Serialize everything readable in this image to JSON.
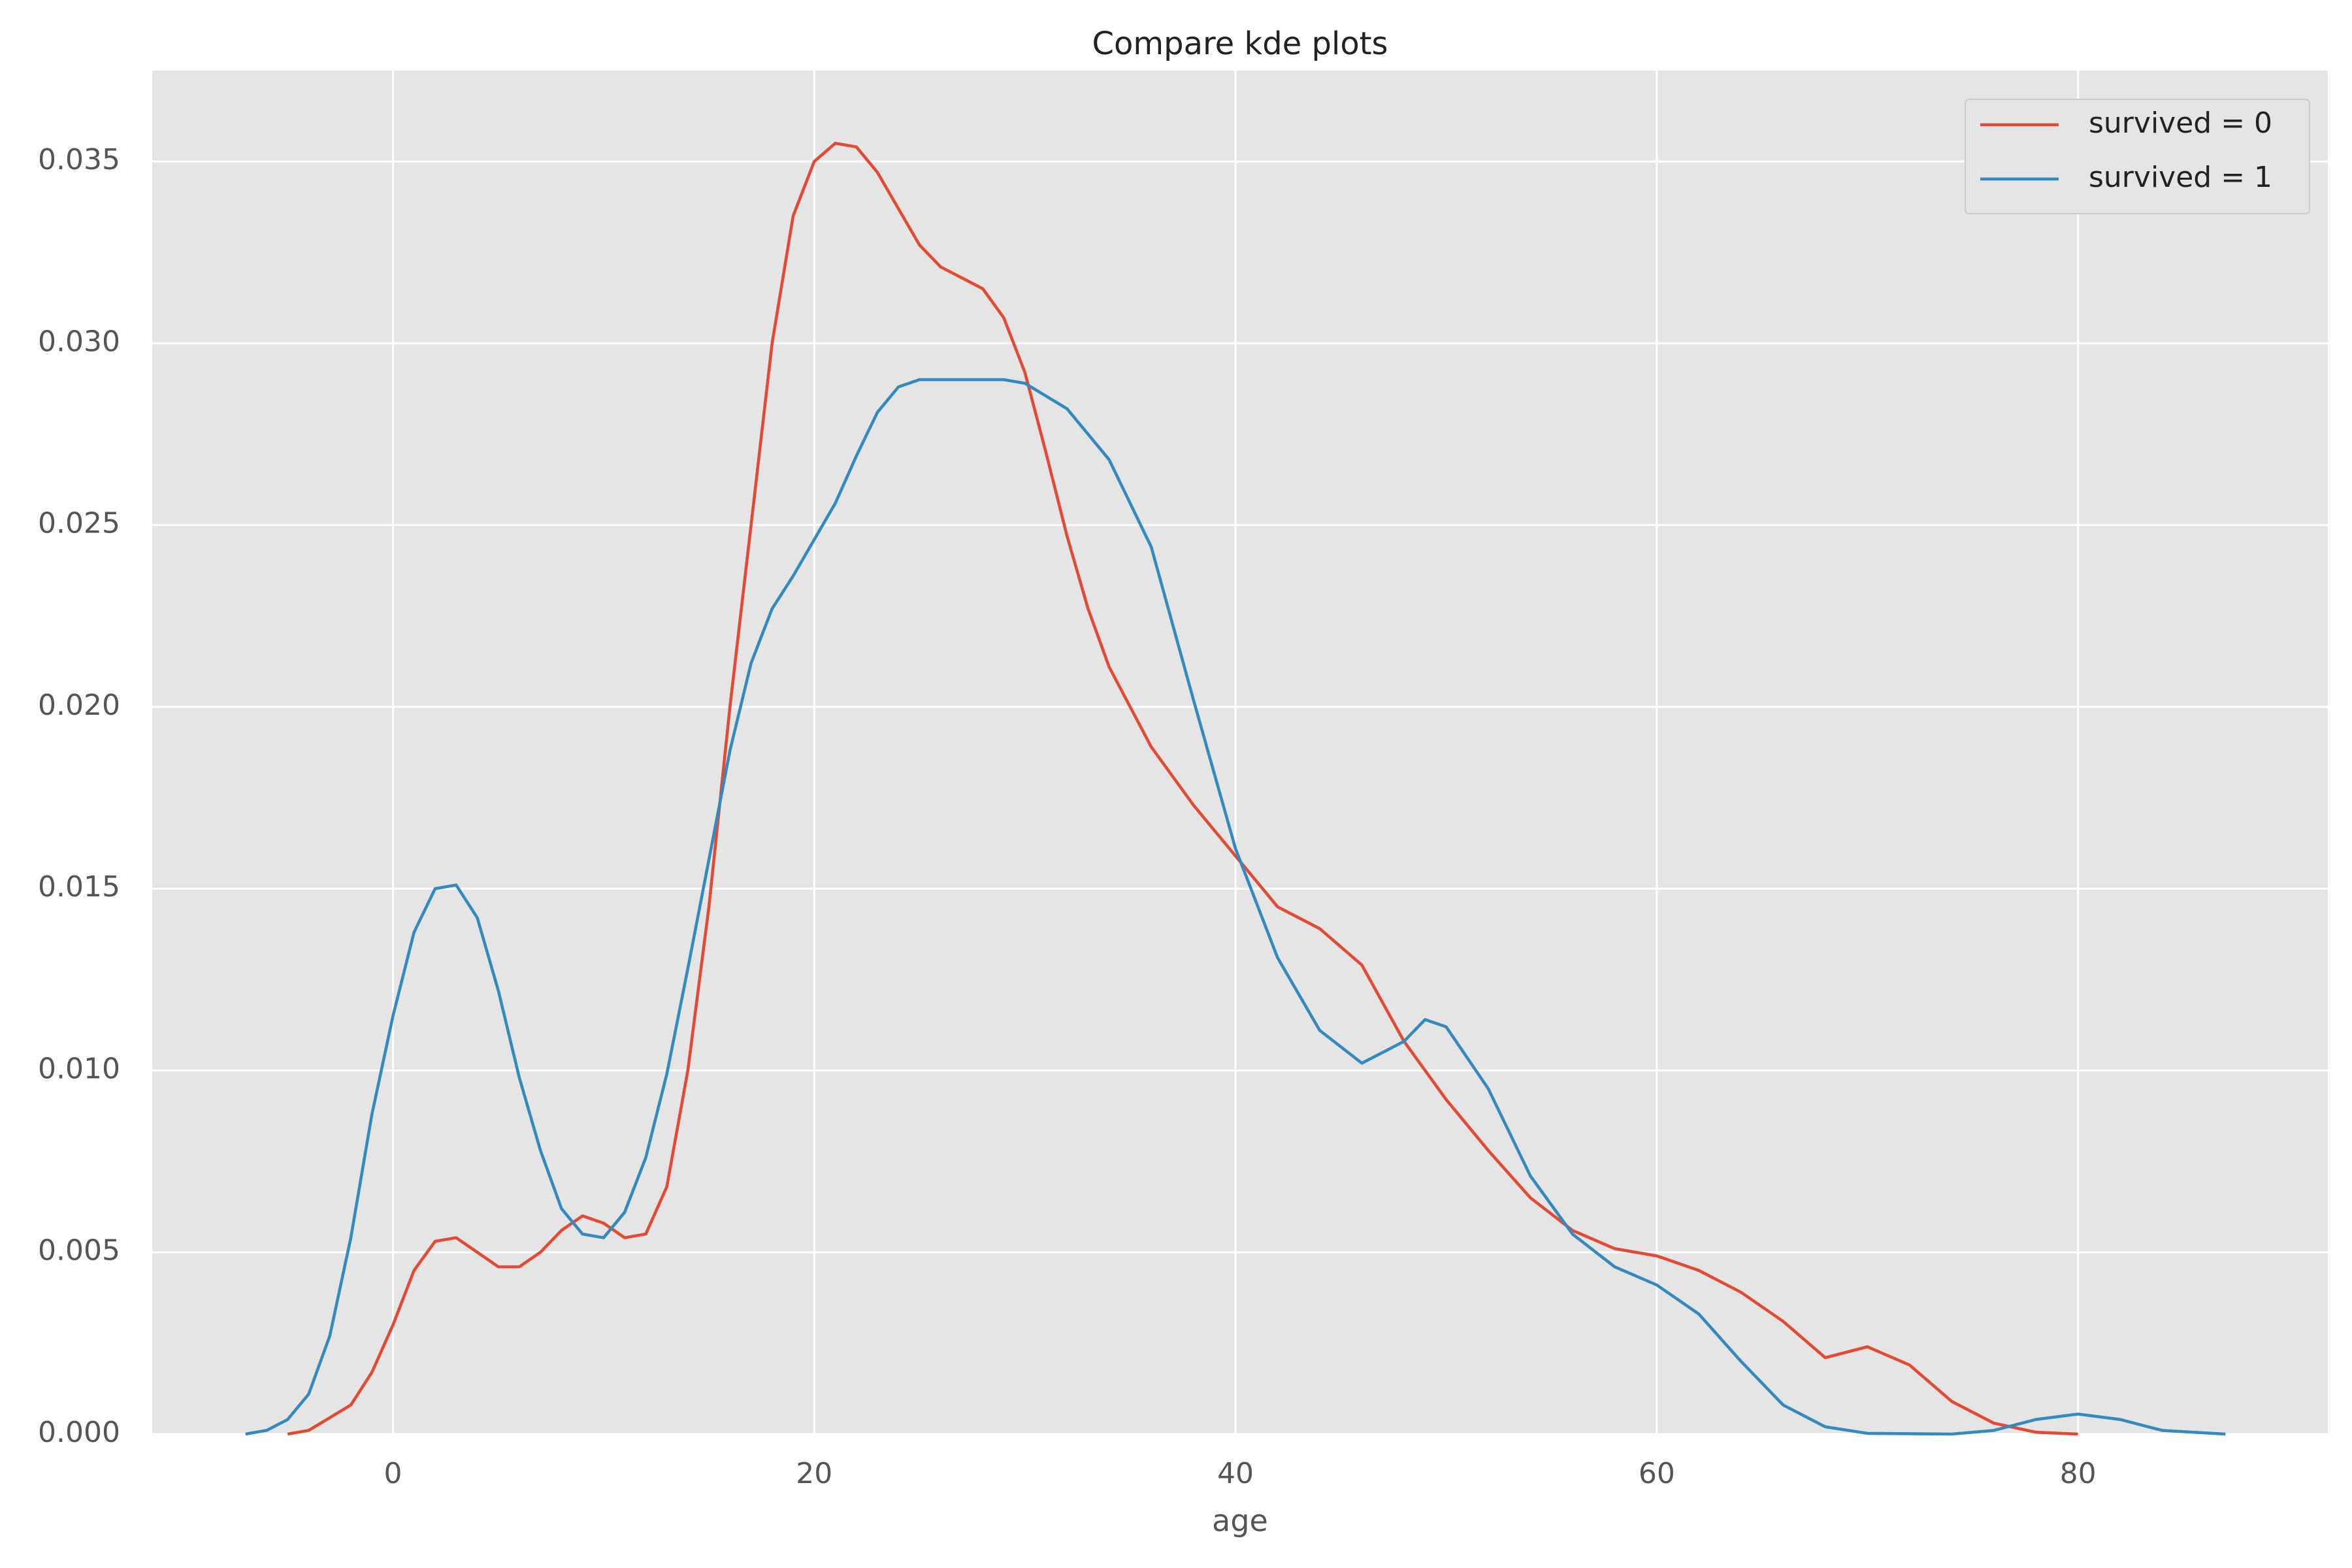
{
  "chart_data": {
    "type": "line",
    "title": "Compare kde plots",
    "xlabel": "age",
    "xlim": [
      -11.43,
      91.86
    ],
    "ylim": [
      0,
      0.0375
    ],
    "xticks": [
      0,
      20,
      40,
      60,
      80
    ],
    "yticks": [
      {
        "value": 0,
        "label": "0.000"
      },
      0.005,
      {
        "value": 0.01,
        "label": "0.010"
      },
      0.015,
      {
        "value": 0.02,
        "label": "0.020"
      },
      0.025,
      {
        "value": 0.03,
        "label": "0.030"
      },
      0.035
    ],
    "grid": true,
    "legend": "upper right",
    "series": [
      {
        "name": "survived = 0",
        "color": "#e24a33",
        "x": [
          -5,
          -4,
          -2,
          -1,
          0,
          1,
          2,
          3,
          4,
          5,
          6,
          7,
          8,
          9,
          10,
          11,
          12,
          13,
          14,
          15,
          16,
          17,
          18,
          19,
          20,
          21,
          22,
          23,
          24,
          25,
          26,
          27,
          28,
          29,
          30,
          31,
          32,
          33,
          34,
          36,
          38,
          40,
          42,
          44,
          46,
          48,
          50,
          52,
          54,
          56,
          58,
          60,
          62,
          64,
          66,
          68,
          70,
          72,
          74,
          76,
          78,
          80
        ],
        "values": [
          0,
          0.0001,
          0.0008,
          0.0017,
          0.003,
          0.0045,
          0.0053,
          0.0054,
          0.005,
          0.0046,
          0.0046,
          0.005,
          0.0056,
          0.006,
          0.0058,
          0.0054,
          0.0055,
          0.0068,
          0.01,
          0.0145,
          0.02,
          0.025,
          0.03,
          0.0335,
          0.035,
          0.0355,
          0.0354,
          0.0347,
          0.0337,
          0.0327,
          0.0321,
          0.0318,
          0.0315,
          0.0307,
          0.0292,
          0.027,
          0.0247,
          0.0227,
          0.0211,
          0.0189,
          0.0173,
          0.0159,
          0.0145,
          0.0139,
          0.0129,
          0.0108,
          0.0092,
          0.0078,
          0.0065,
          0.0056,
          0.0051,
          0.0049,
          0.0045,
          0.0039,
          0.0031,
          0.0021,
          0.0024,
          0.0019,
          0.0009,
          0.0003,
          5e-05,
          0
        ]
      },
      {
        "name": "survived = 1",
        "color": "#348abd",
        "x": [
          -7,
          -6,
          -5,
          -4,
          -3,
          -2,
          -1,
          0,
          1,
          2,
          3,
          4,
          5,
          6,
          7,
          8,
          9,
          10,
          11,
          12,
          13,
          14,
          15,
          16,
          17,
          18,
          19,
          20,
          21,
          22,
          23,
          24,
          25,
          27,
          29,
          30,
          32,
          34,
          36,
          38,
          40,
          42,
          44,
          46,
          48,
          49,
          50,
          52,
          54,
          56,
          58,
          60,
          62,
          64,
          66,
          68,
          70,
          74,
          76,
          78,
          80,
          82,
          84,
          87
        ],
        "values": [
          0,
          0.0001,
          0.0004,
          0.0011,
          0.0027,
          0.0054,
          0.0088,
          0.0115,
          0.0138,
          0.015,
          0.0151,
          0.0142,
          0.0122,
          0.0098,
          0.0078,
          0.0062,
          0.0055,
          0.0054,
          0.0061,
          0.0076,
          0.0099,
          0.0128,
          0.0158,
          0.0188,
          0.0212,
          0.0227,
          0.0236,
          0.0246,
          0.0256,
          0.0269,
          0.0281,
          0.0288,
          0.029,
          0.029,
          0.029,
          0.0289,
          0.0282,
          0.0268,
          0.0244,
          0.0202,
          0.0161,
          0.0131,
          0.0111,
          0.0102,
          0.0108,
          0.0114,
          0.0112,
          0.0095,
          0.0071,
          0.0055,
          0.0046,
          0.0041,
          0.0033,
          0.002,
          0.0008,
          0.0002,
          2e-05,
          0,
          0.0001,
          0.0004,
          0.00055,
          0.0004,
          0.0001,
          0
        ]
      }
    ]
  }
}
